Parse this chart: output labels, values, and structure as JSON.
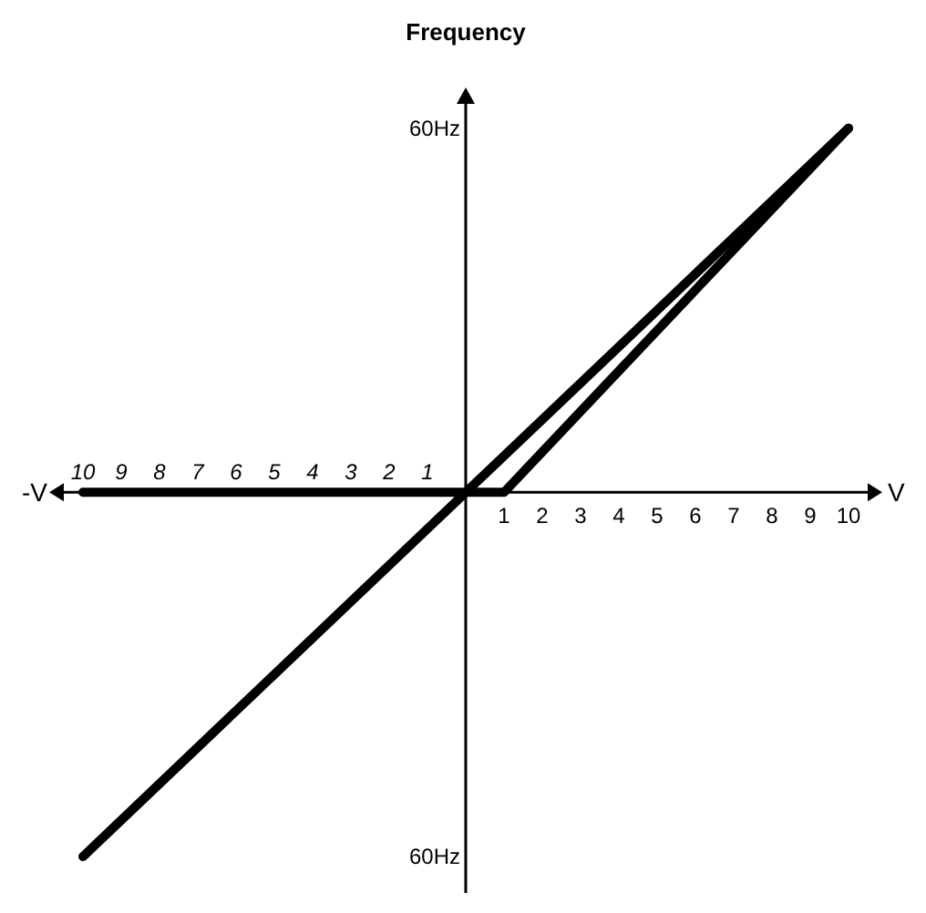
{
  "chart_data": {
    "type": "line",
    "ylabel": "Frequency",
    "xlabel": "V",
    "annotations": [
      "-V"
    ],
    "xlim": [
      -10.5,
      10.5
    ],
    "xticks": [
      1,
      2,
      3,
      4,
      5,
      6,
      7,
      8,
      9,
      10
    ],
    "x2lim": [
      10.5,
      -10.5
    ],
    "x2ticks": [
      10,
      9,
      8,
      7,
      6,
      5,
      4,
      3,
      2,
      1
    ],
    "ylim": [
      -66,
      64
    ],
    "yticks": [
      {
        "value": 60,
        "label": "60Hz"
      },
      {
        "value": -60,
        "label": "60Hz"
      }
    ],
    "grid": false,
    "legend": false,
    "marker": "none",
    "line_style": "solid",
    "series": [
      {
        "color": "#000000",
        "x": [
          -10,
          10
        ],
        "values": [
          -60,
          60
        ]
      },
      {
        "color": "#000000",
        "x": [
          -10,
          0,
          1,
          10
        ],
        "values": [
          0,
          0,
          0,
          60
        ]
      }
    ]
  }
}
